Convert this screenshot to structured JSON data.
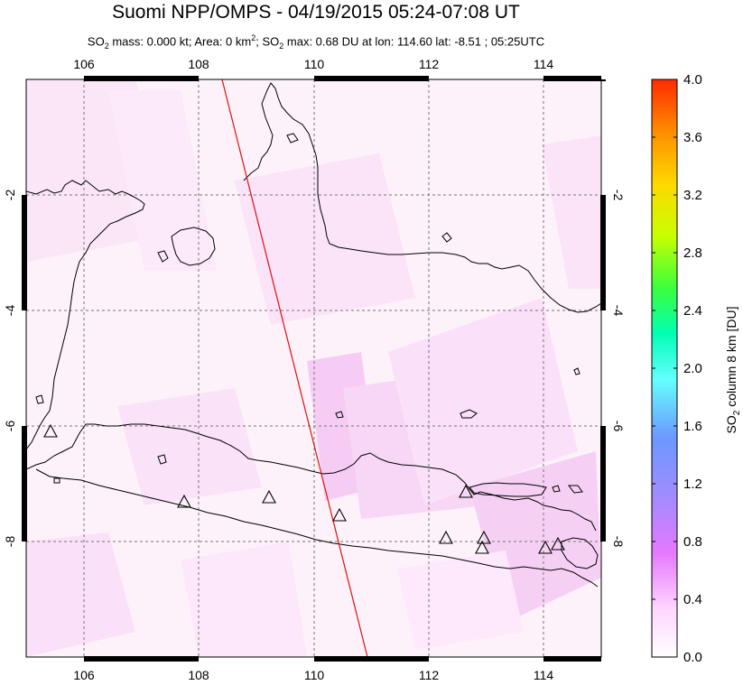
{
  "title": "Suomi NPP/OMPS - 04/19/2015 05:24-07:08 UT",
  "subtitle_parts": {
    "so2_prefix": "SO",
    "so2_sub": "2",
    "mass": " mass: 0.000 kt; Area: 0 km",
    "area_sup": "2",
    "max_prefix": "; SO",
    "max_sub": "2",
    "max_rest": " max: 0.68 DU at lon: 114.60 lat: -8.51 ; 05:25UTC"
  },
  "map": {
    "lon_ticks": [
      "106",
      "108",
      "110",
      "112",
      "114"
    ],
    "lat_ticks": [
      "-2",
      "-4",
      "-6",
      "-8"
    ],
    "volcano_count": 10
  },
  "colorbar": {
    "ticks": [
      "4.0",
      "3.6",
      "3.2",
      "2.8",
      "2.4",
      "2.0",
      "1.6",
      "1.2",
      "0.8",
      "0.4",
      "0.0"
    ],
    "label_prefix": "SO",
    "label_sub": "2",
    "label_rest": " column 8 km [DU]",
    "colors": [
      "#ff2a00",
      "#ff8c00",
      "#ffd800",
      "#c8ff00",
      "#3cff3c",
      "#00ffb4",
      "#64ffff",
      "#64a0ff",
      "#a08cff",
      "#e678ff",
      "#ffc8ff",
      "#ffffff"
    ]
  }
}
